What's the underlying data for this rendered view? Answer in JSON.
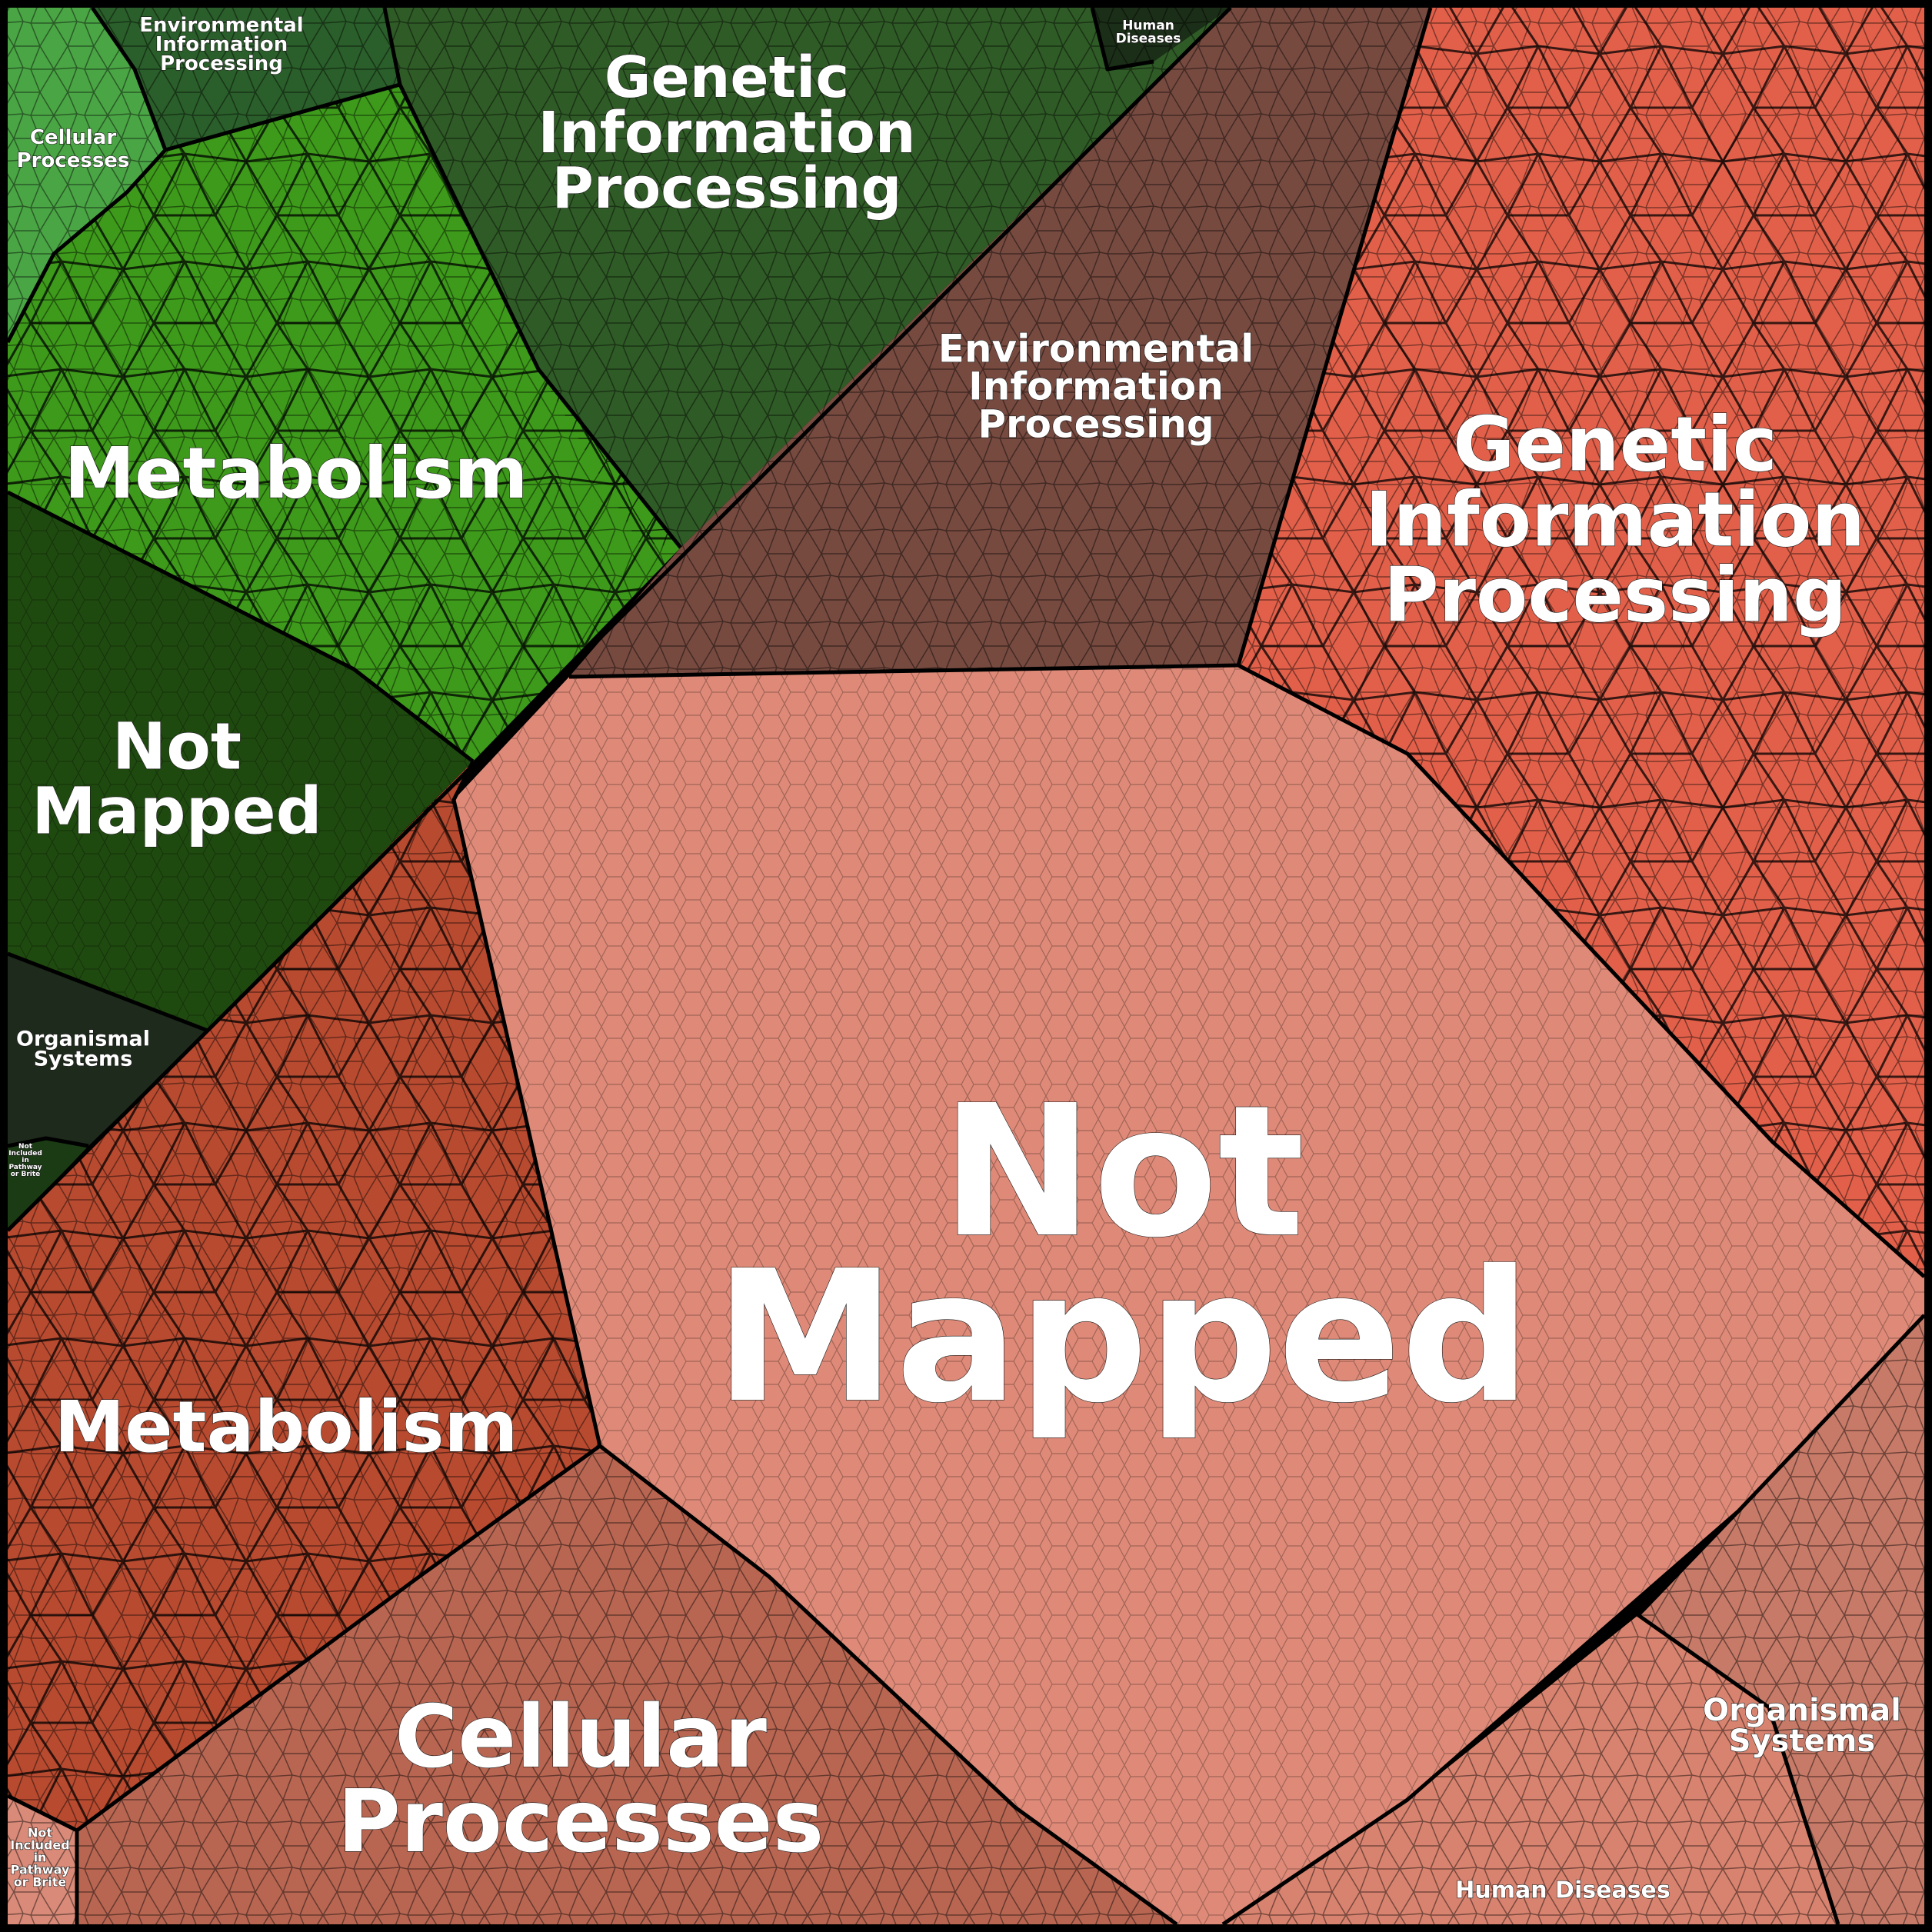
{
  "title": "",
  "colors": {
    "green_group": {
      "cellular_processes": "#4aa545",
      "environmental_information_processing": "#2a5e2a",
      "human_diseases": "#1b2e17",
      "genetic_information_processing": "#2f5b26",
      "metabolism": "#3d9a1a",
      "not_mapped": "#1f4a0f",
      "organismal_systems": "#1e2a1c",
      "not_included": "#1b3b14"
    },
    "red_group": {
      "environmental_information_processing": "#774a40",
      "genetic_information_processing": "#e2604a",
      "not_mapped": "#df8a78",
      "metabolism": "#b84a30",
      "cellular_processes": "#b86652",
      "organismal_systems": "#c77a68",
      "human_diseases": "#d8836f",
      "not_included": "#d98a78"
    },
    "border": "#000000"
  },
  "green_group": {
    "cellular_processes": "Cellular\nProcesses",
    "environmental_information_processing": "Environmental\nInformation\nProcessing",
    "human_diseases": "Human\nDiseases",
    "genetic_information_processing": "Genetic\nInformation\nProcessing",
    "metabolism": "Metabolism",
    "not_mapped": "Not\nMapped",
    "organismal_systems": "Organismal\nSystems",
    "not_included": "Not\nIncluded\nin\nPathway\nor Brite"
  },
  "red_group": {
    "environmental_information_processing": "Environmental\nInformation\nProcessing",
    "genetic_information_processing": "Genetic\nInformation\nProcessing",
    "not_mapped": "Not\nMapped",
    "metabolism": "Metabolism",
    "cellular_processes": "Cellular\nProcesses",
    "organismal_systems": "Organismal\nSystems",
    "human_diseases": "Human Diseases",
    "not_included": "Not\nIncluded\nin\nPathway\nor Brite"
  }
}
